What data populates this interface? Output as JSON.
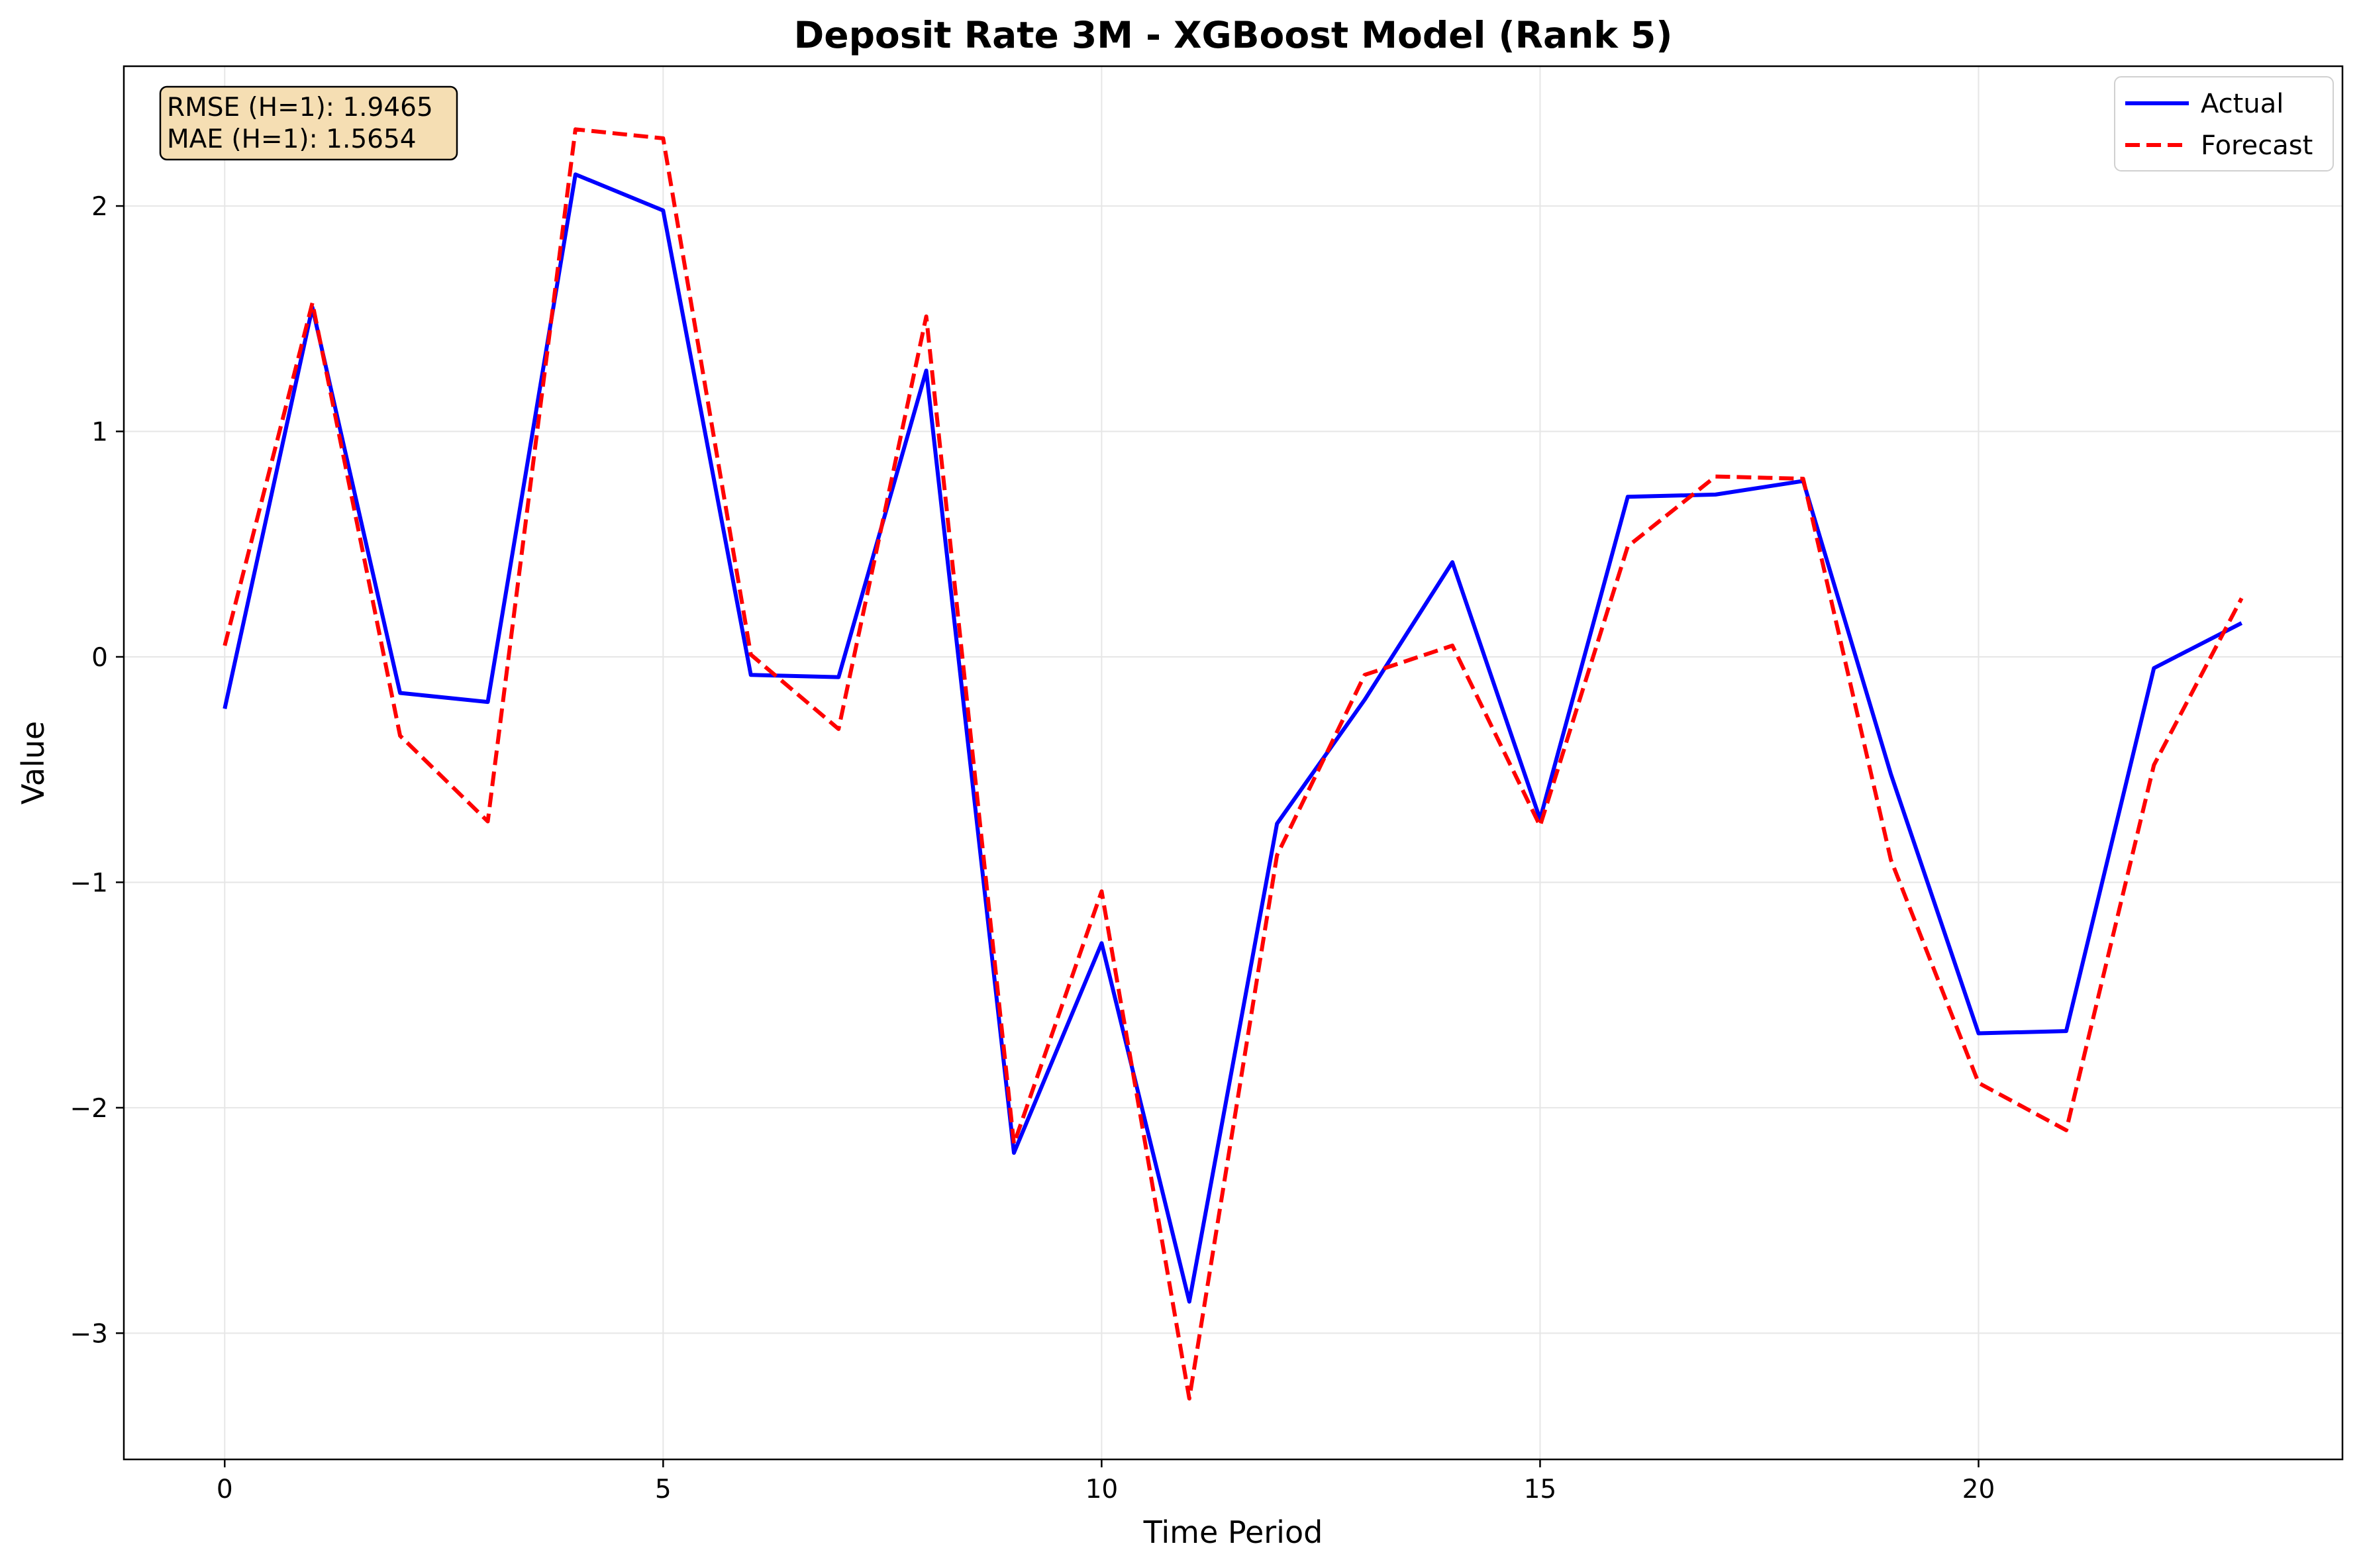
{
  "chart_data": {
    "type": "line",
    "title": "Deposit Rate 3M - XGBoost Model (Rank 5)",
    "xlabel": "Time Period",
    "ylabel": "Value",
    "xlim": [
      -1.15,
      24.15
    ],
    "ylim": [
      -3.56,
      2.62
    ],
    "xticks": [
      0,
      5,
      10,
      15,
      20
    ],
    "yticks": [
      -3,
      -2,
      -1,
      0,
      1,
      2
    ],
    "grid": true,
    "legend_position": "upper right",
    "x": [
      0,
      1,
      2,
      3,
      4,
      5,
      6,
      7,
      8,
      9,
      10,
      11,
      12,
      13,
      14,
      15,
      16,
      17,
      18,
      19,
      20,
      21,
      22,
      23
    ],
    "series": [
      {
        "name": "Actual",
        "color": "#0000ff",
        "style": "solid",
        "values": [
          -0.23,
          1.55,
          -0.16,
          -0.2,
          2.14,
          1.98,
          -0.08,
          -0.09,
          1.27,
          -2.2,
          -1.27,
          -2.86,
          -0.74,
          -0.19,
          0.42,
          -0.72,
          0.71,
          0.72,
          0.78,
          -0.52,
          -1.67,
          -1.66,
          -0.05,
          0.15
        ]
      },
      {
        "name": "Forecast",
        "color": "#ff0000",
        "style": "dashed",
        "values": [
          0.05,
          1.57,
          -0.35,
          -0.73,
          2.34,
          2.3,
          0.01,
          -0.32,
          1.51,
          -2.16,
          -1.04,
          -3.29,
          -0.88,
          -0.08,
          0.05,
          -0.75,
          0.49,
          0.8,
          0.79,
          -0.9,
          -1.89,
          -2.1,
          -0.48,
          0.26
        ]
      }
    ],
    "annotations": {
      "rmse": "RMSE (H=1): 1.9465",
      "mae": "MAE (H=1): 1.5654",
      "box_color": "#f5deb3"
    }
  }
}
